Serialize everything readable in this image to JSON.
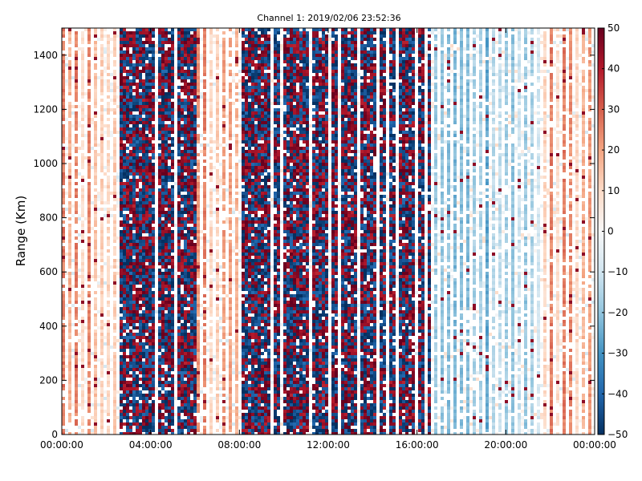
{
  "chart_data": {
    "type": "heatmap",
    "title": "Channel 1: 2019/02/06 23:52:36",
    "xlabel": "",
    "ylabel": "Range (Km)",
    "xlim": [
      "00:00:00",
      "24:00:00"
    ],
    "ylim": [
      0,
      1500
    ],
    "x_ticks": [
      "00:00:00",
      "04:00:00",
      "08:00:00",
      "12:00:00",
      "16:00:00",
      "20:00:00",
      "00:00:00"
    ],
    "y_ticks": [
      0,
      200,
      400,
      600,
      800,
      1000,
      1200,
      1400
    ],
    "colorbar": {
      "colormap": "RdBu_r",
      "range": [
        -50,
        50
      ],
      "ticks": [
        50,
        40,
        30,
        20,
        10,
        0,
        -10,
        -20,
        -30,
        -40,
        -50
      ],
      "min_color": "#053061",
      "mid_color": "#f7f7f7",
      "max_color": "#67001f"
    },
    "time_bands": [
      {
        "start": "00:00:00",
        "end": "02:30:00",
        "pattern": "light red / white stripes"
      },
      {
        "start": "02:30:00",
        "end": "06:00:00",
        "pattern": "dense dark red / dark blue noise"
      },
      {
        "start": "06:00:00",
        "end": "08:00:00",
        "pattern": "light red stripes, white gaps"
      },
      {
        "start": "08:00:00",
        "end": "16:30:00",
        "pattern": "dense dark red / dark blue noise"
      },
      {
        "start": "16:30:00",
        "end": "21:30:00",
        "pattern": "light blue / white stripes"
      },
      {
        "start": "21:30:00",
        "end": "24:00:00",
        "pattern": "light red / white stripes"
      }
    ],
    "grid": false
  }
}
